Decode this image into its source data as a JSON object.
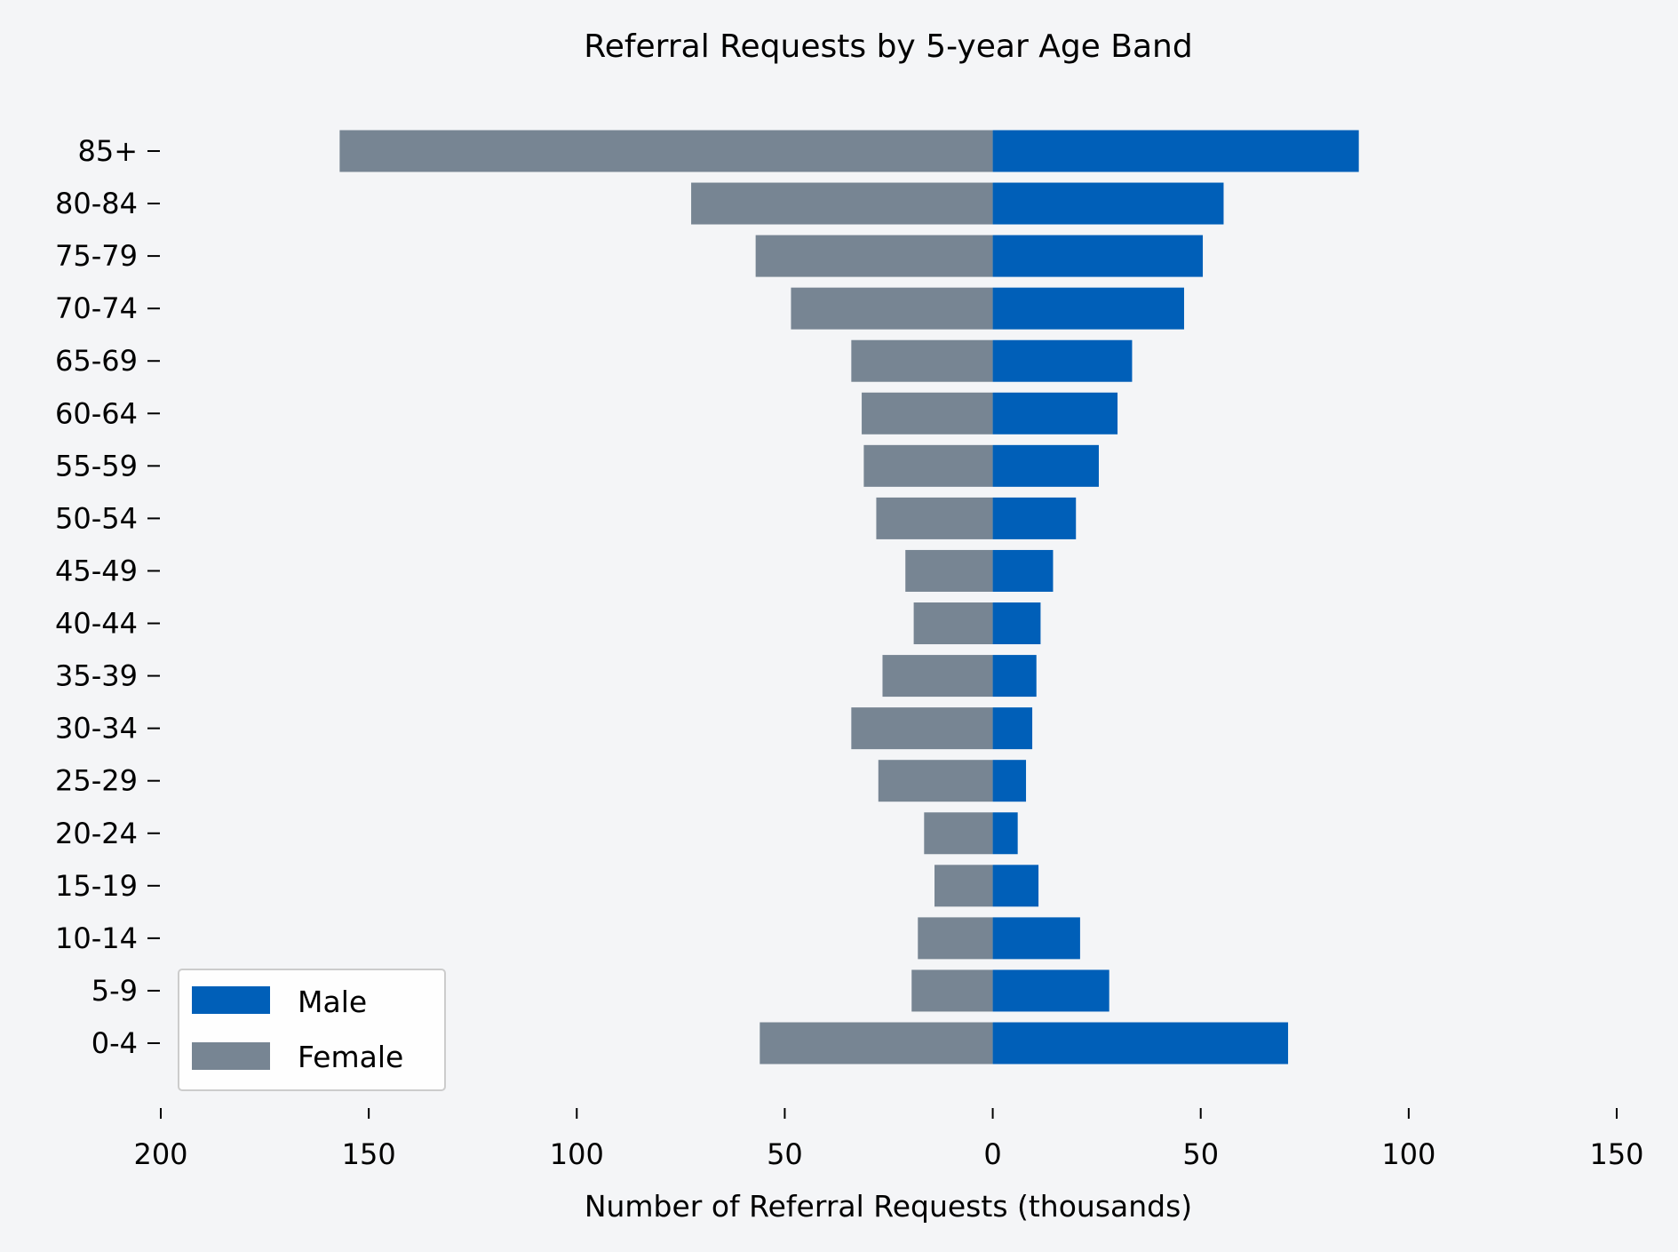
{
  "chart_data": {
    "type": "bar",
    "orientation": "horizontal",
    "title": "Referral Requests by 5-year Age Band",
    "xlabel": "Number of Referral Requests (thousands)",
    "ylabel": "",
    "categories": [
      "0-4",
      "5-9",
      "10-14",
      "15-19",
      "20-24",
      "25-29",
      "30-34",
      "35-39",
      "40-44",
      "45-49",
      "50-54",
      "55-59",
      "60-64",
      "65-69",
      "70-74",
      "75-79",
      "80-84",
      "85+"
    ],
    "series": [
      {
        "name": "Male",
        "color": "#005fb8",
        "values": [
          71,
          28,
          21,
          11,
          6,
          8,
          9.5,
          10.5,
          11.5,
          14.5,
          20,
          25.5,
          30,
          33.5,
          46,
          50.5,
          55.5,
          88
        ]
      },
      {
        "name": "Female",
        "color": "#778593",
        "values": [
          56,
          19.5,
          18,
          14,
          16.5,
          27.5,
          34,
          26.5,
          19,
          21,
          28,
          31,
          31.5,
          34,
          48.5,
          57,
          72.5,
          157
        ]
      }
    ],
    "xlim": [
      -200,
      150
    ],
    "xticks": [
      -200,
      -150,
      -100,
      -50,
      0,
      50,
      100,
      150
    ],
    "xtick_labels": [
      "200",
      "150",
      "100",
      "50",
      "0",
      "50",
      "100",
      "150"
    ],
    "grid": false,
    "legend_position": "lower-left"
  }
}
